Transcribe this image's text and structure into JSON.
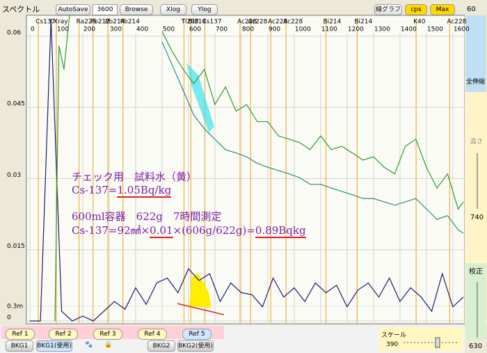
{
  "toolbar": {
    "title": "スペクトル",
    "autosave": "AutoSave",
    "duration": "3600",
    "browse": "Browse",
    "xlog": "Xlog",
    "ylog": "Ylog",
    "line_graph": "線グラフ",
    "cps": "cps",
    "max": "Max"
  },
  "side": {
    "top": "60",
    "zoom": "全伸縮",
    "height": "高さ",
    "height_value": "740",
    "calibrate": "校正",
    "calibrate_value": "630"
  },
  "bottom": {
    "refs": [
      "Ref 1",
      "Ref 2",
      "Ref 3",
      "Ref 4",
      "Ref 5"
    ],
    "bkg1": "BKG1",
    "bkg1_use": "BKG1(使用)",
    "bkg2": "BKG2",
    "bkg2_use": "BKG2(使用)",
    "scale": "スケール",
    "scale_value": "390"
  },
  "annotation": {
    "line1": "チェック用　試料水（黄）",
    "line2": [
      "Cs-137=",
      "1.05Bq/kg"
    ],
    "line3": "600ml容器　622g　7時間測定",
    "line4": [
      "Cs-137=92㎟×",
      "0.01",
      "×(606g/622g)=",
      "0.89Bqkg"
    ]
  },
  "chart_data": {
    "type": "line",
    "grid": true,
    "xlim": [
      -13,
      1645
    ],
    "xticks": [
      0,
      100,
      200,
      300,
      400,
      500,
      600,
      700,
      800,
      900,
      1000,
      1100,
      1200,
      1300,
      1400,
      1500,
      1600
    ],
    "ylim": [
      0,
      0.0644
    ],
    "yticks": [
      0,
      0.015,
      0.03,
      0.045,
      0.06
    ],
    "y2lim": [
      0,
      0.00627
    ],
    "y2ticks": [
      {
        "value": 0.0003,
        "label": "0.3m"
      }
    ],
    "markers": [
      {
        "label": "Cs137",
        "energy": 32
      },
      {
        "label": "Xray",
        "energy": 100
      },
      {
        "label": "Ra226",
        "energy": 186
      },
      {
        "label": "Pb212",
        "energy": 239
      },
      {
        "label": "Pb214",
        "energy": 295
      },
      {
        "label": "Pb214",
        "energy": 352
      },
      {
        "label": "Tl208",
        "energy": 583
      },
      {
        "label": "Bi214",
        "energy": 609
      },
      {
        "label": "Cs137",
        "energy": 662
      },
      {
        "label": "Ac228",
        "energy": 795
      },
      {
        "label": "Ac228",
        "energy": 835
      },
      {
        "label": "Ac228",
        "energy": 911
      },
      {
        "label": "Ac228",
        "energy": 969
      },
      {
        "label": "Bi214",
        "energy": 1120
      },
      {
        "label": "Bi214",
        "energy": 1238
      },
      {
        "label": "K40",
        "energy": 1461
      },
      {
        "label": "Ac228",
        "energy": 1588
      }
    ],
    "series": [
      {
        "color": "#2e9a2e",
        "x": [
          500,
          540,
          580,
          620,
          660,
          700,
          740,
          780,
          820,
          860,
          900,
          940,
          980,
          1020,
          1060,
          1100,
          1140,
          1180,
          1220,
          1260,
          1300,
          1340,
          1380,
          1420,
          1460,
          1500,
          1540,
          1580,
          1620,
          1640
        ],
        "values": [
          0.061,
          0.0566,
          0.053,
          0.05,
          0.053,
          0.0456,
          0.0493,
          0.0442,
          0.0456,
          0.042,
          0.042,
          0.039,
          0.0383,
          0.0376,
          0.0361,
          0.039,
          0.0361,
          0.0368,
          0.0354,
          0.0339,
          0.0346,
          0.0324,
          0.031,
          0.0368,
          0.0383,
          0.0324,
          0.028,
          0.031,
          0.0236,
          0.0251
        ]
      },
      {
        "color": "#2a8a80",
        "x": [
          500,
          540,
          580,
          620,
          660,
          700,
          740,
          780,
          820,
          860,
          900,
          940,
          980,
          1020,
          1060,
          1100,
          1140,
          1180,
          1220,
          1260,
          1300,
          1340,
          1380,
          1420,
          1460,
          1500,
          1540,
          1580,
          1620,
          1640
        ],
        "values": [
          0.0588,
          0.0537,
          0.0486,
          0.0434,
          0.0405,
          0.0383,
          0.0361,
          0.0354,
          0.0346,
          0.0332,
          0.0324,
          0.0317,
          0.031,
          0.0302,
          0.0288,
          0.0288,
          0.028,
          0.0273,
          0.0266,
          0.0258,
          0.0258,
          0.0251,
          0.0244,
          0.0251,
          0.0258,
          0.0236,
          0.0214,
          0.0222,
          0.0192,
          0.0185
        ]
      },
      {
        "color": "#1a1a6e",
        "axis": "y2",
        "x": [
          0,
          40,
          80,
          120,
          160,
          200,
          240,
          280,
          320,
          360,
          400,
          440,
          480,
          520,
          560,
          600,
          640,
          680,
          720,
          760,
          800,
          840,
          880,
          920,
          960,
          1000,
          1040,
          1080,
          1120,
          1160,
          1200,
          1240,
          1280,
          1320,
          1360,
          1400,
          1440,
          1480,
          1520,
          1560,
          1600,
          1640
        ],
        "values": [
          0,
          0,
          0.0062,
          0.0002,
          0,
          0.0001,
          0,
          0.0002,
          0.0004,
          0.00024,
          0.00068,
          0.00034,
          0.00078,
          0.00088,
          0.00058,
          0.00107,
          0.00083,
          0.00097,
          0.0004,
          0.00078,
          0.00058,
          0.00054,
          0.00029,
          0.00088,
          0.00049,
          0.00068,
          0.0004,
          0.00078,
          0.00058,
          0.00073,
          0.00029,
          0.00063,
          0.00078,
          0.00049,
          0.00088,
          0.0004,
          0.00068,
          0.00049,
          0.0002,
          0.00097,
          0.00029,
          0.00049
        ]
      },
      {
        "color": "#2e9a2e",
        "x": [
          95,
          110,
          129,
          150
        ],
        "values": [
          0,
          0.058,
          0.053,
          0.0644
        ]
      }
    ]
  }
}
